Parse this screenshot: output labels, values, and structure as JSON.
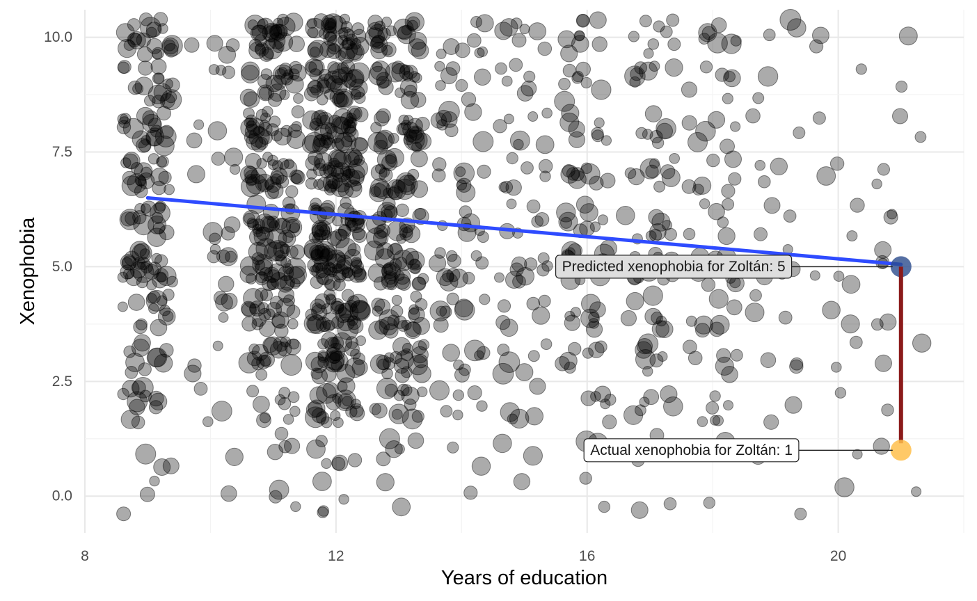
{
  "chart_data": {
    "type": "scatter",
    "title": "",
    "xlabel": "Years of education",
    "ylabel": "Xenophobia",
    "xlim": [
      8,
      22
    ],
    "ylim": [
      -0.8,
      10.6
    ],
    "x_ticks": [
      8,
      12,
      16,
      20
    ],
    "x_tick_labels": [
      "8",
      "12",
      "16",
      "20"
    ],
    "y_ticks": [
      0,
      2.5,
      5,
      7.5,
      10
    ],
    "y_tick_labels": [
      "0.0",
      "2.5",
      "5.0",
      "7.5",
      "10.0"
    ],
    "grid": true,
    "legend": "none",
    "point_color": "#000000",
    "point_opacity": 0.33,
    "jitter": {
      "x": 0.4,
      "y": 0.4
    },
    "education_levels": [
      9,
      10,
      11,
      12,
      13,
      14,
      15,
      16,
      17,
      18,
      19,
      20,
      21
    ],
    "xenophobia_levels": [
      0,
      1,
      2,
      3,
      4,
      5,
      6,
      7,
      8,
      9,
      10
    ],
    "density": [
      [
        3,
        3,
        12,
        10,
        14,
        28,
        16,
        20,
        20,
        18,
        22
      ],
      [
        1,
        1,
        3,
        3,
        4,
        6,
        4,
        4,
        3,
        3,
        4
      ],
      [
        3,
        4,
        10,
        18,
        24,
        36,
        28,
        30,
        28,
        24,
        30
      ],
      [
        4,
        6,
        22,
        30,
        36,
        48,
        38,
        40,
        40,
        36,
        40
      ],
      [
        2,
        5,
        14,
        20,
        22,
        30,
        20,
        24,
        24,
        20,
        24
      ],
      [
        1,
        2,
        6,
        7,
        8,
        12,
        7,
        8,
        8,
        7,
        8
      ],
      [
        1,
        2,
        5,
        6,
        6,
        10,
        6,
        7,
        7,
        6,
        7
      ],
      [
        2,
        2,
        6,
        7,
        9,
        14,
        9,
        9,
        8,
        8,
        9
      ],
      [
        2,
        2,
        6,
        7,
        8,
        12,
        9,
        9,
        7,
        7,
        8
      ],
      [
        1,
        2,
        6,
        6,
        7,
        10,
        6,
        7,
        6,
        6,
        7
      ],
      [
        1,
        1,
        2,
        3,
        3,
        4,
        3,
        3,
        2,
        2,
        3
      ],
      [
        1,
        1,
        1,
        2,
        2,
        3,
        2,
        2,
        1,
        1,
        2
      ],
      [
        1,
        1,
        1,
        2,
        2,
        3,
        2,
        2,
        2,
        1,
        1
      ]
    ],
    "fit_line": {
      "color": "#2E4BFF",
      "points": [
        {
          "x": 9,
          "y": 6.5
        },
        {
          "x": 21,
          "y": 5.05
        }
      ]
    },
    "highlight": {
      "x": 21,
      "predicted": 5,
      "actual": 1,
      "predicted_color": "#2B4B8C",
      "actual_color": "#FFC04C",
      "residual_color": "#8B1A1A"
    },
    "annotations": [
      {
        "id": "predicted",
        "text": "Predicted xenophobia for Zoltán: 5",
        "x": 21,
        "y": 5,
        "label_x": 15.6,
        "fill": "#dedede"
      },
      {
        "id": "actual",
        "text": "Actual xenophobia for Zoltán: 1",
        "x": 21,
        "y": 1,
        "label_x": 16.05,
        "fill": "#ffffff"
      }
    ]
  }
}
